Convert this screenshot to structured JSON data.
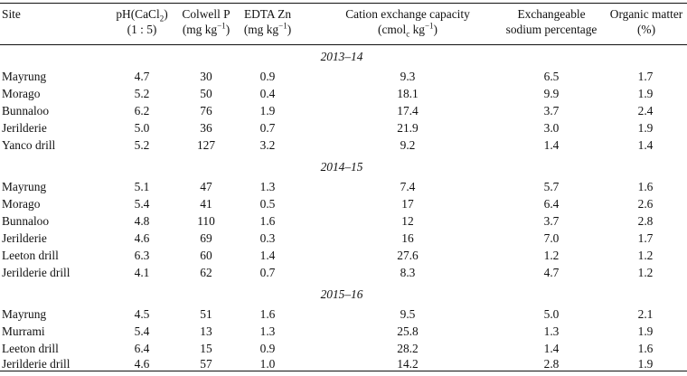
{
  "columns": [
    {
      "key": "site",
      "line1": "Site",
      "line2": ""
    },
    {
      "key": "ph",
      "line1": "pH(CaCl",
      "line1_sub": "2",
      "line1_tail": ")",
      "line2": "(1 : 5)"
    },
    {
      "key": "colwell_p",
      "line1": "Colwell P",
      "line2": "(mg kg",
      "line2_sup": "−1",
      "line2_tail": ")"
    },
    {
      "key": "edta_zn",
      "line1": "EDTA Zn",
      "line2": "(mg kg",
      "line2_sup": "−1",
      "line2_tail": ")"
    },
    {
      "key": "cec",
      "line1": "Cation exchange capacity",
      "line2": "(cmol",
      "line2_sub": "c",
      "line2_tail": " kg",
      "line2_sup": "−1",
      "line2_tail2": ")"
    },
    {
      "key": "esp",
      "line1": "Exchangeable",
      "line2": "sodium percentage"
    },
    {
      "key": "om",
      "line1": "Organic matter",
      "line2": "(%)"
    }
  ],
  "sections": [
    {
      "label": "2013–14",
      "rows": [
        {
          "site": "Mayrung",
          "ph": "4.7",
          "colwell_p": "30",
          "edta_zn": "0.9",
          "cec": "9.3",
          "esp": "6.5",
          "om": "1.7"
        },
        {
          "site": "Morago",
          "ph": "5.2",
          "colwell_p": "50",
          "edta_zn": "0.4",
          "cec": "18.1",
          "esp": "9.9",
          "om": "1.9"
        },
        {
          "site": "Bunnaloo",
          "ph": "6.2",
          "colwell_p": "76",
          "edta_zn": "1.9",
          "cec": "17.4",
          "esp": "3.7",
          "om": "2.4"
        },
        {
          "site": "Jerilderie",
          "ph": "5.0",
          "colwell_p": "36",
          "edta_zn": "0.7",
          "cec": "21.9",
          "esp": "3.0",
          "om": "1.9"
        },
        {
          "site": "Yanco drill",
          "ph": "5.2",
          "colwell_p": "127",
          "edta_zn": "3.2",
          "cec": "9.2",
          "esp": "1.4",
          "om": "1.4"
        }
      ]
    },
    {
      "label": "2014–15",
      "rows": [
        {
          "site": "Mayrung",
          "ph": "5.1",
          "colwell_p": "47",
          "edta_zn": "1.3",
          "cec": "7.4",
          "esp": "5.7",
          "om": "1.6"
        },
        {
          "site": "Morago",
          "ph": "5.4",
          "colwell_p": "41",
          "edta_zn": "0.5",
          "cec": "17",
          "esp": "6.4",
          "om": "2.6"
        },
        {
          "site": "Bunnaloo",
          "ph": "4.8",
          "colwell_p": "110",
          "edta_zn": "1.6",
          "cec": "12",
          "esp": "3.7",
          "om": "2.8"
        },
        {
          "site": "Jerilderie",
          "ph": "4.6",
          "colwell_p": "69",
          "edta_zn": "0.3",
          "cec": "16",
          "esp": "7.0",
          "om": "1.7"
        },
        {
          "site": "Leeton drill",
          "ph": "6.3",
          "colwell_p": "60",
          "edta_zn": "1.4",
          "cec": "27.6",
          "esp": "1.2",
          "om": "1.2"
        },
        {
          "site": "Jerilderie drill",
          "ph": "4.1",
          "colwell_p": "62",
          "edta_zn": "0.7",
          "cec": "8.3",
          "esp": "4.7",
          "om": "1.2"
        }
      ]
    },
    {
      "label": "2015–16",
      "rows": [
        {
          "site": "Mayrung",
          "ph": "4.5",
          "colwell_p": "51",
          "edta_zn": "1.6",
          "cec": "9.5",
          "esp": "5.0",
          "om": "2.1"
        },
        {
          "site": "Murrami",
          "ph": "5.4",
          "colwell_p": "13",
          "edta_zn": "1.3",
          "cec": "25.8",
          "esp": "1.3",
          "om": "1.9"
        },
        {
          "site": "Leeton drill",
          "ph": "6.4",
          "colwell_p": "15",
          "edta_zn": "0.9",
          "cec": "28.2",
          "esp": "1.4",
          "om": "1.6"
        },
        {
          "site": "Jerilderie drill",
          "ph": "4.6",
          "colwell_p": "57",
          "edta_zn": "1.0",
          "cec": "14.2",
          "esp": "2.8",
          "om": "1.9"
        }
      ]
    }
  ]
}
